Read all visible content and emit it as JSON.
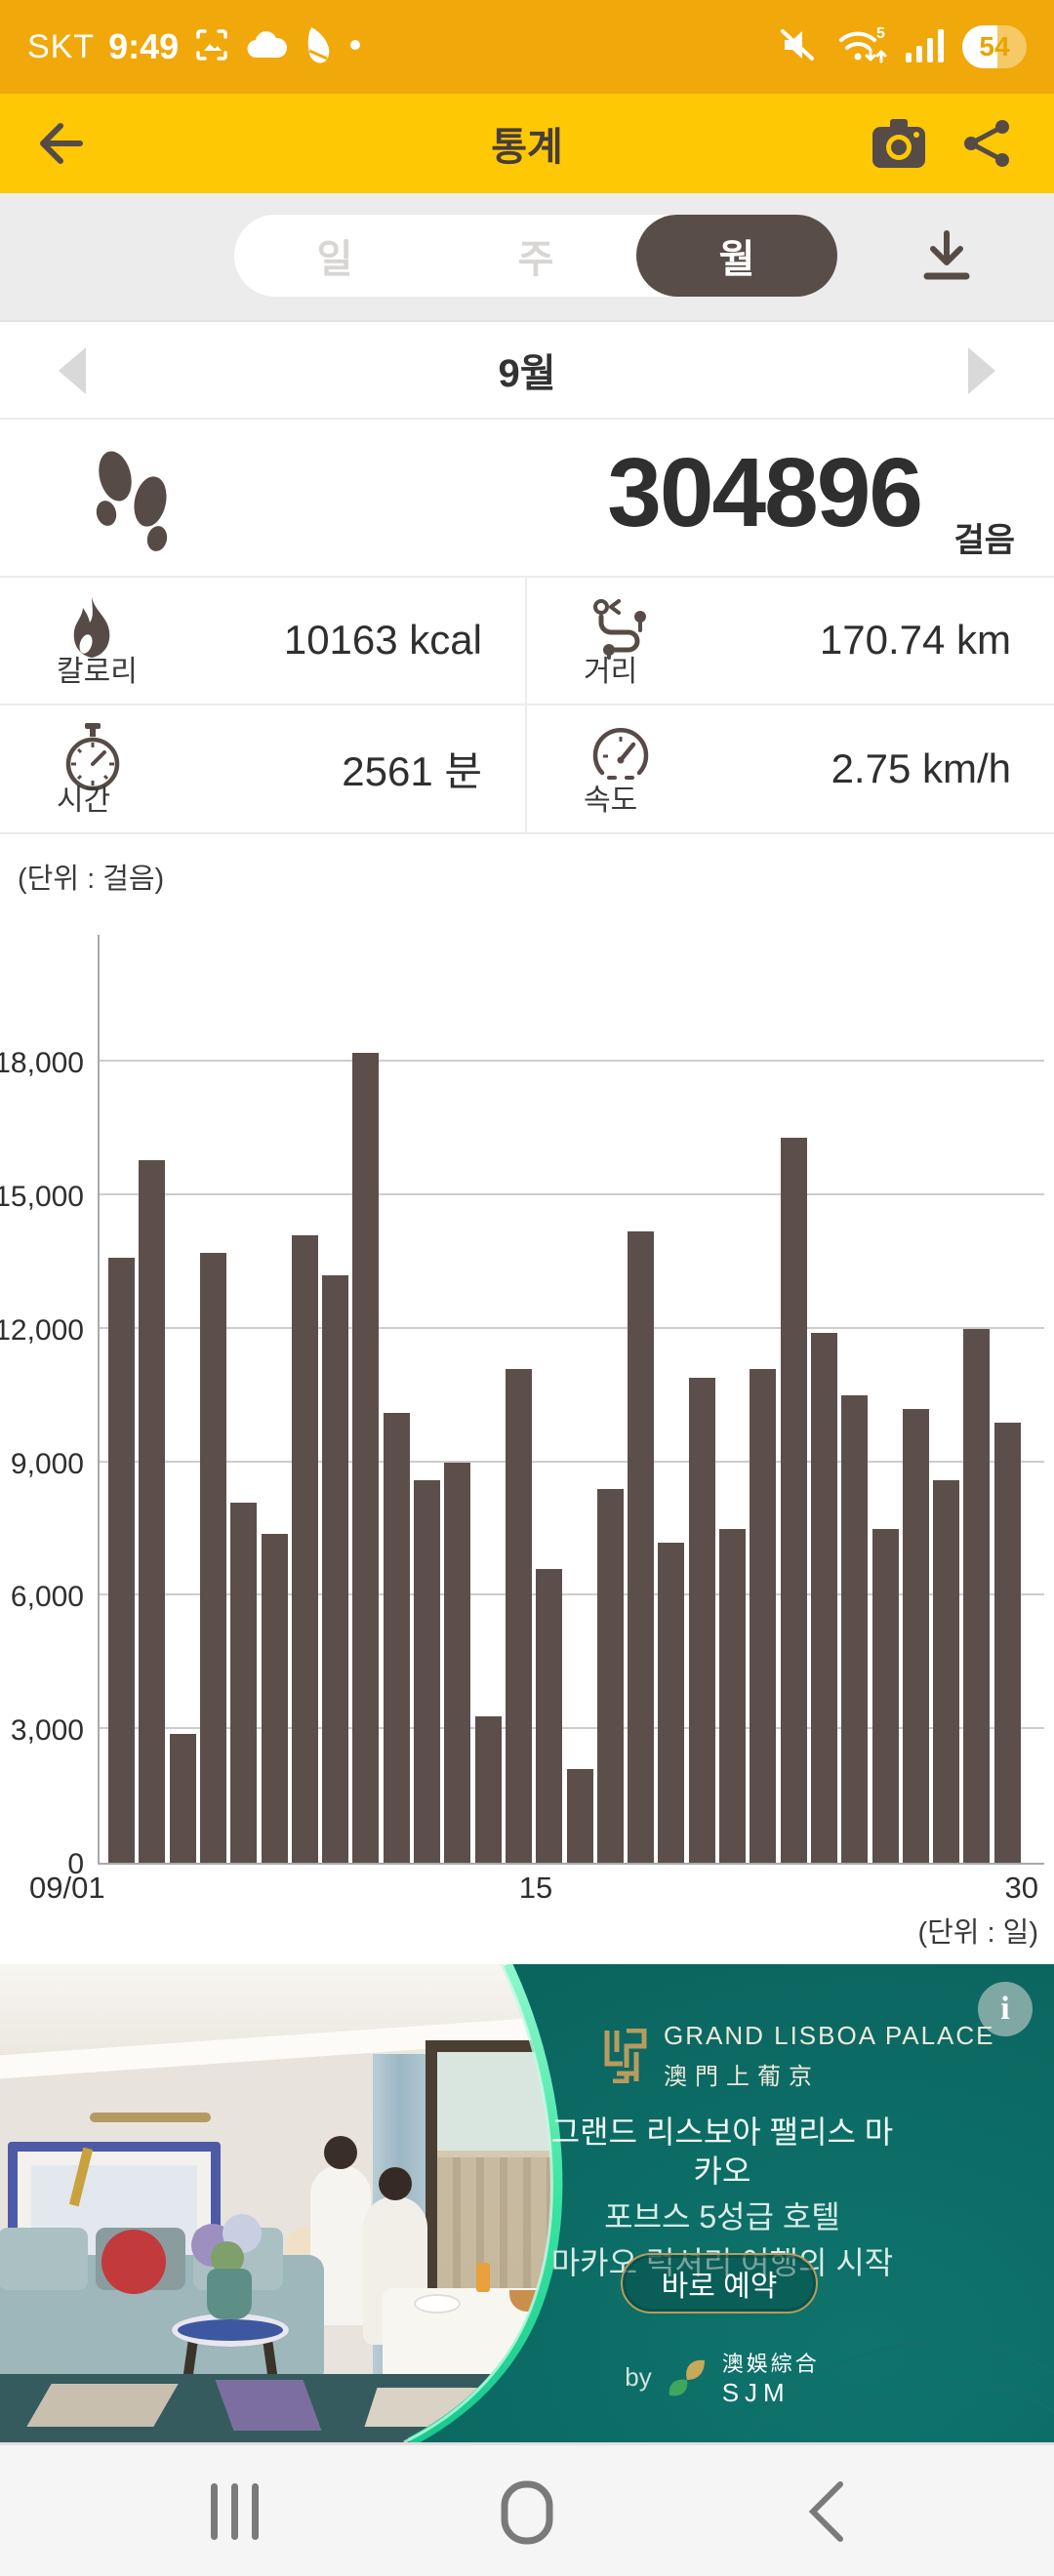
{
  "status_bar": {
    "carrier": "SKT",
    "time": "9:49",
    "battery": "54"
  },
  "header": {
    "title": "통계"
  },
  "tabs": {
    "items": [
      {
        "label": "일"
      },
      {
        "label": "주"
      },
      {
        "label": "월"
      }
    ],
    "selected": "월"
  },
  "month_nav": {
    "label": "9월"
  },
  "steps": {
    "value": "304896",
    "unit": "걸음"
  },
  "stats": [
    {
      "icon": "flame-icon",
      "label": "칼로리",
      "value": "10163 kcal"
    },
    {
      "icon": "route-icon",
      "label": "거리",
      "value": "170.74 km"
    },
    {
      "icon": "stopwatch-icon",
      "label": "시간",
      "value": "2561 분"
    },
    {
      "icon": "speedometer-icon",
      "label": "속도",
      "value": "2.75 km/h"
    }
  ],
  "chart_data": {
    "type": "bar",
    "unit_label": "(단위 : 걸음)",
    "x_unit_label": "(단위 : 일)",
    "categories": [
      1,
      2,
      3,
      4,
      5,
      6,
      7,
      8,
      9,
      10,
      11,
      12,
      13,
      14,
      15,
      16,
      17,
      18,
      19,
      20,
      21,
      22,
      23,
      24,
      25,
      26,
      27,
      28,
      29,
      30
    ],
    "values": [
      13600,
      15800,
      2900,
      13700,
      8100,
      7400,
      14100,
      13200,
      18200,
      10100,
      8600,
      9000,
      3300,
      11100,
      6600,
      2100,
      8400,
      14200,
      7200,
      10900,
      7500,
      11100,
      16300,
      11900,
      10500,
      7500,
      10200,
      8600,
      12000,
      9900
    ],
    "yticks": [
      0,
      3000,
      6000,
      9000,
      12000,
      15000,
      18000
    ],
    "ylim": [
      0,
      20900
    ],
    "xtick_labels": {
      "first": "09/01",
      "mid": "15",
      "last": "30"
    },
    "bar_color": "#5C4F4B",
    "grid": true,
    "legend": "none"
  },
  "ad": {
    "brand": {
      "name": "GRAND LISBOA PALACE",
      "cjk": "澳門上葡京"
    },
    "lines": [
      "그랜드 리스보아 팰리스 마카오",
      "포브스 5성급 호텔",
      "마카오 럭셔리 여행의 시작"
    ],
    "cta_label": "바로 예약",
    "by_label": "by",
    "sjm": {
      "cjk": "澳娛綜合",
      "latin": "SJM"
    },
    "teal_color": "#0B655F",
    "mint_color": "#49E9A6",
    "gold_color": "#B89B5E"
  },
  "colors": {
    "status_amber": "#F1A80B",
    "header_yellow": "#FFC805",
    "bar_brown": "#5C4F4B",
    "pill_brown": "#594D49"
  }
}
